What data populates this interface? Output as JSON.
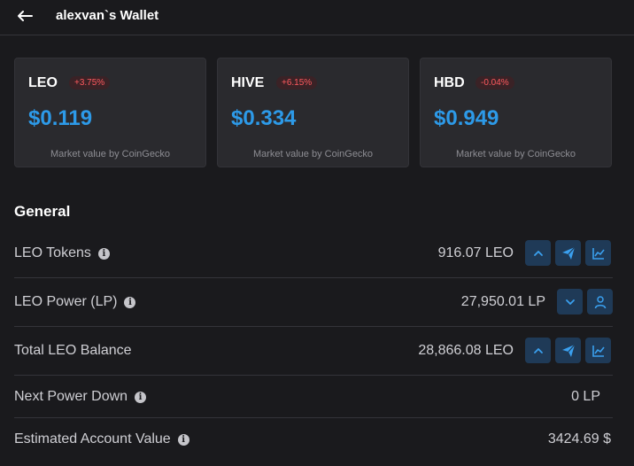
{
  "header": {
    "title": "alexvan`s Wallet"
  },
  "cards": [
    {
      "symbol": "LEO",
      "change": "+3.75%",
      "price": "$0.119",
      "note": "Market value by CoinGecko"
    },
    {
      "symbol": "HIVE",
      "change": "+6.15%",
      "price": "$0.334",
      "note": "Market value by CoinGecko"
    },
    {
      "symbol": "HBD",
      "change": "-0.04%",
      "price": "$0.949",
      "note": "Market value by CoinGecko"
    }
  ],
  "colors": {
    "accent": "#2d9ae8",
    "negative": "#ff5a5f",
    "background": "#1a1a1d",
    "card": "#2a2a2e",
    "button": "#1f3a57"
  },
  "general": {
    "title": "General",
    "rows": [
      {
        "label": "LEO Tokens",
        "value": "916.07 LEO"
      },
      {
        "label": "LEO Power (LP)",
        "value": "27,950.01 LP"
      },
      {
        "label": "Total LEO Balance",
        "value": "28,866.08 LEO"
      },
      {
        "label": "Next Power Down",
        "value": "0 LP"
      },
      {
        "label": "Estimated Account Value",
        "value": "3424.69 $"
      }
    ]
  },
  "icons": [
    "back-arrow-icon",
    "info-icon",
    "chevron-up-icon",
    "chevron-down-icon",
    "send-icon",
    "chart-icon",
    "user-icon"
  ]
}
